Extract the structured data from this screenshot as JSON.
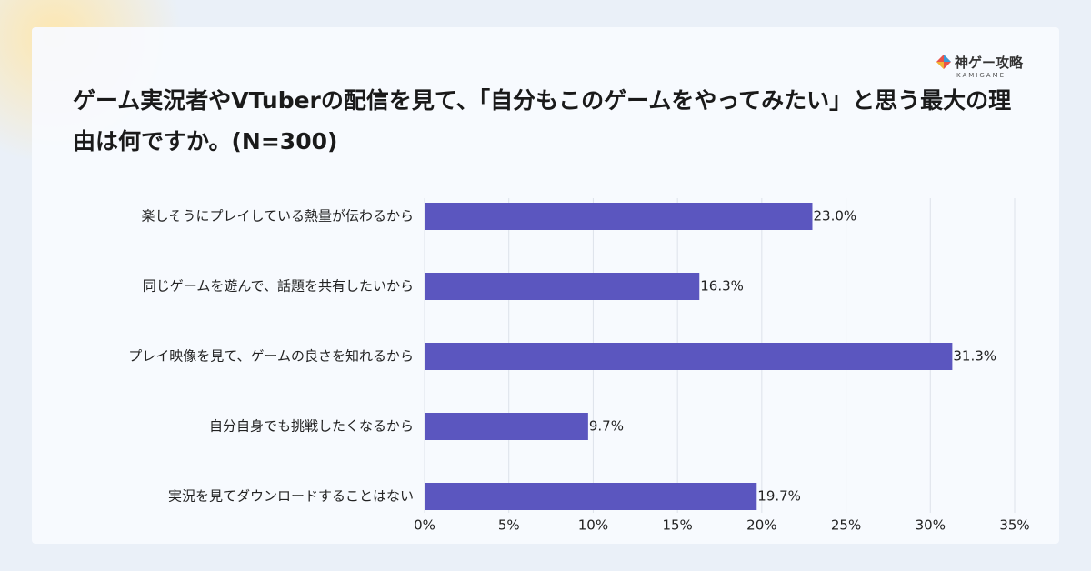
{
  "logo": {
    "text": "神ゲー攻略",
    "subtext": "KAMIGAME"
  },
  "chart_data": {
    "type": "barh",
    "title": "ゲーム実況者やVTuberの配信を見て、「自分もこのゲームをやってみたい」と思う最大の理由は何ですか。(N=300)",
    "categories": [
      "楽しそうにプレイしている熱量が伝わるから",
      "同じゲームを遊んで、話題を共有したいから",
      "プレイ映像を見て、ゲームの良さを知れるから",
      "自分自身でも挑戦したくなるから",
      "実況を見てダウンロードすることはない"
    ],
    "values": [
      23.0,
      16.3,
      31.3,
      9.7,
      19.7
    ],
    "value_labels": [
      "23.0%",
      "16.3%",
      "31.3%",
      "9.7%",
      "19.7%"
    ],
    "color": "#5b56bf",
    "xlim": [
      0,
      35
    ],
    "xticks": [
      {
        "value": 0,
        "label": "0%"
      },
      {
        "value": 5,
        "label": "5%"
      },
      {
        "value": 10,
        "label": "10%"
      },
      {
        "value": 15,
        "label": "15%"
      },
      {
        "value": 20,
        "label": "20%"
      },
      {
        "value": 25,
        "label": "25%"
      },
      {
        "value": 30,
        "label": "30%"
      },
      {
        "value": 35,
        "label": "35%"
      }
    ],
    "grid": true
  }
}
